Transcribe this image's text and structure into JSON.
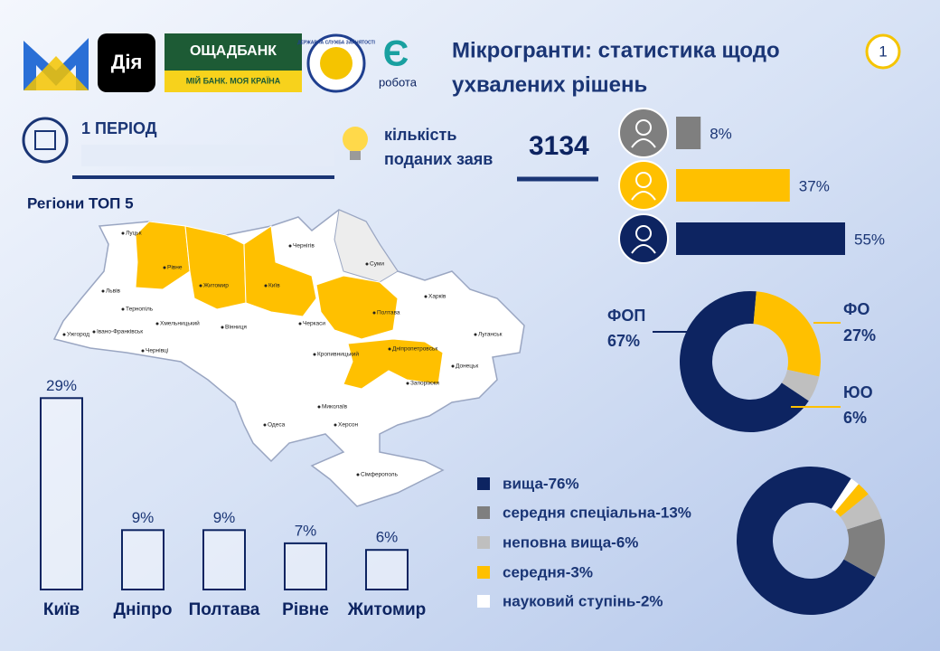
{
  "header": {
    "title_line1": "Мікрогранти: статистика щодо",
    "title_line2": "ухвалених рішень",
    "page_number": "1"
  },
  "logos": {
    "diia": "Дія",
    "bank": "ОЩАДБАНК",
    "bank_slogan": "МІЙ БАНК. МОЯ КРАЇНА",
    "service": "ДЕРЖАВНА СЛУЖБА ЗАЙНЯТОСТІ",
    "ye": "Є",
    "robota": "робота"
  },
  "period": "1 ПЕРІОД",
  "applications": {
    "label_line1": "кількість",
    "label_line2": "поданих заяв",
    "value": "3134"
  },
  "map": {
    "title": "Регіони ТОП 5",
    "cities": [
      "Луцьк",
      "Рівне",
      "Житомир",
      "Київ",
      "Чернігів",
      "Суми",
      "Харків",
      "Полтава",
      "Черкаси",
      "Вінниця",
      "Хмельницький",
      "Тернопіль",
      "Львів",
      "Ужгород",
      "Івано-Франківськ",
      "Чернівці",
      "Кропивницький",
      "Дніпропетровськ",
      "Луганськ",
      "Донецьк",
      "Запоріжжя",
      "Миколаїв",
      "Херсон",
      "Одеса",
      "Сімферополь"
    ]
  },
  "chart_data": [
    {
      "type": "bar",
      "orientation": "horizontal",
      "categories": [
        null,
        null,
        null
      ],
      "values": [
        8,
        37,
        55
      ],
      "value_labels": [
        "8%",
        "37%",
        "55%"
      ],
      "colors": [
        "#7f7f7f",
        "#ffc000",
        "#0d2461"
      ]
    },
    {
      "type": "pie",
      "donut": true,
      "categories": [
        "ФОП",
        "ФО",
        "ЮО"
      ],
      "values": [
        67,
        27,
        6
      ],
      "value_labels": [
        "67%",
        "27%",
        "6%"
      ],
      "colors": [
        "#0d2461",
        "#ffc000",
        "#bfbfbf"
      ]
    },
    {
      "type": "pie",
      "donut": true,
      "categories": [
        "вища-76%",
        "середня спеціальна-13%",
        "неповна вища-6%",
        "середня-3%",
        "науковий ступінь-2%"
      ],
      "values": [
        76,
        13,
        6,
        3,
        2
      ],
      "colors": [
        "#0d2461",
        "#7f7f7f",
        "#bfbfbf",
        "#ffc000",
        "#ffffff"
      ]
    },
    {
      "type": "bar",
      "orientation": "vertical",
      "categories": [
        "Київ",
        "Дніпро",
        "Полтава",
        "Рівне",
        "Житомир"
      ],
      "values": [
        29,
        9,
        9,
        7,
        6
      ],
      "value_labels": [
        "29%",
        "9%",
        "9%",
        "7%",
        "6%"
      ],
      "color": "#0d2461"
    }
  ]
}
